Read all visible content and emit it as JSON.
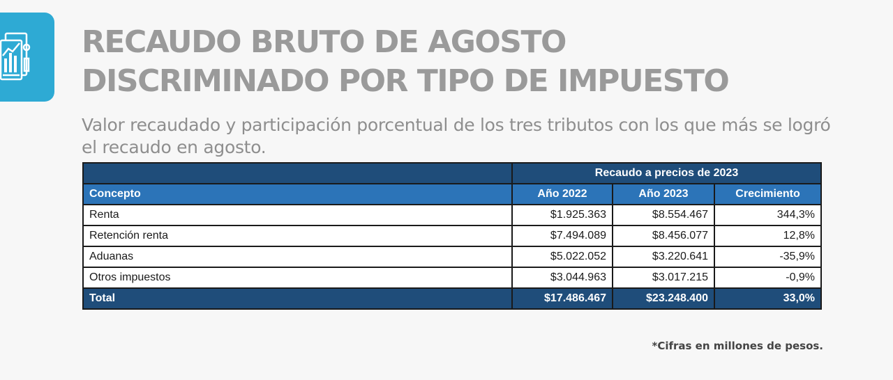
{
  "header": {
    "title_line1": "RECAUDO BRUTO DE AGOSTO",
    "title_line2": "DISCRIMINADO POR TIPO DE IMPUESTO",
    "subtitle": "Valor recaudado y participación porcentual de los tres tributos con los que más se logró el recaudo en agosto.",
    "logo_icon": "bar-chart-document-icon",
    "accent_color": "#2eaad4"
  },
  "table": {
    "group_header": "Recaudo a precios de 2023",
    "columns": [
      "Concepto",
      "Año 2022",
      "Año 2023",
      "Crecimiento"
    ],
    "rows": [
      [
        "Renta",
        "$1.925.363",
        "$8.554.467",
        "344,3%"
      ],
      [
        "Retención renta",
        "$7.494.089",
        "$8.456.077",
        "12,8%"
      ],
      [
        "Aduanas",
        "$5.022.052",
        "$3.220.641",
        "-35,9%"
      ],
      [
        "Otros impuestos",
        "$3.044.963",
        "$3.017.215",
        "-0,9%"
      ]
    ],
    "total": [
      "Total",
      "$17.486.467",
      "$23.248.400",
      "33,0%"
    ],
    "header_color": "#1f4d7a",
    "subheader_color": "#2c74b8"
  },
  "footnote": "*Cifras en millones de pesos."
}
